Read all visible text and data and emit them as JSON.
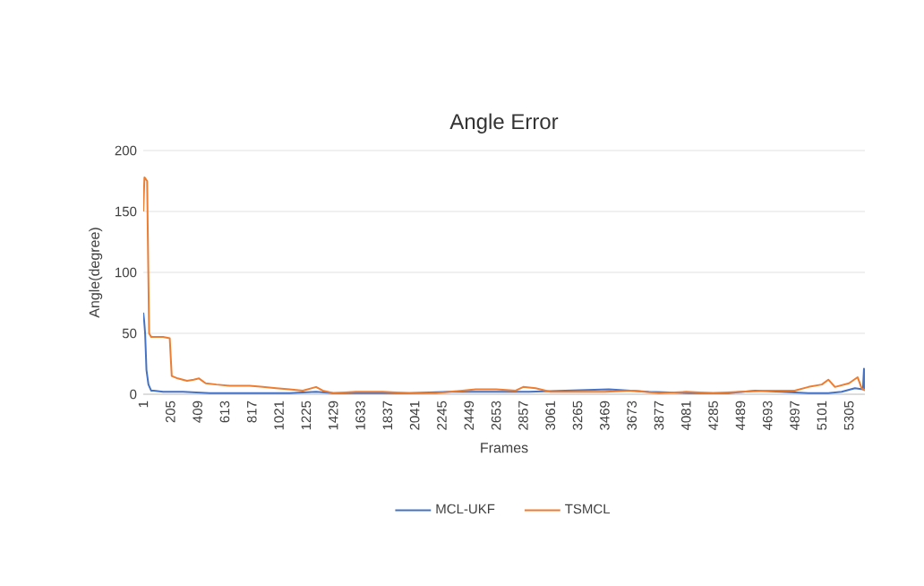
{
  "chart_data": {
    "type": "line",
    "title": "Angle Error",
    "xlabel": "Frames",
    "ylabel": "Angle(degree)",
    "xlim": [
      1,
      5425
    ],
    "ylim": [
      0,
      200
    ],
    "yticks": [
      0,
      50,
      100,
      150,
      200
    ],
    "xticks": [
      1,
      205,
      409,
      613,
      817,
      1021,
      1225,
      1429,
      1633,
      1837,
      2041,
      2245,
      2449,
      2653,
      2857,
      3061,
      3265,
      3469,
      3673,
      3877,
      4081,
      4285,
      4489,
      4693,
      4897,
      5101,
      5305
    ],
    "grid": "y",
    "legend": "bottom",
    "marker": "none",
    "line_style": "solid",
    "series": [
      {
        "name": "MCL-UKF",
        "color": "#4472c4",
        "x": [
          1,
          8,
          15,
          25,
          40,
          60,
          80,
          150,
          300,
          500,
          800,
          1100,
          1300,
          1429,
          1700,
          2000,
          2300,
          2600,
          2900,
          3200,
          3500,
          3800,
          4100,
          4400,
          4600,
          4800,
          5000,
          5150,
          5250,
          5350,
          5410,
          5418,
          5425
        ],
        "values": [
          67,
          60,
          50,
          20,
          8,
          3,
          3,
          2,
          2,
          1,
          1,
          1,
          2,
          1,
          1,
          1,
          2,
          2,
          2,
          3,
          4,
          2,
          1,
          1,
          3,
          2,
          1,
          1,
          2,
          5,
          4,
          21,
          4
        ]
      },
      {
        "name": "TSMCL",
        "color": "#ed7d31",
        "x": [
          1,
          10,
          30,
          45,
          60,
          150,
          200,
          215,
          260,
          330,
          380,
          420,
          470,
          550,
          650,
          800,
          900,
          1000,
          1100,
          1200,
          1300,
          1350,
          1429,
          1600,
          1800,
          2000,
          2200,
          2400,
          2500,
          2653,
          2800,
          2857,
          2950,
          3061,
          3265,
          3469,
          3673,
          3877,
          4081,
          4285,
          4489,
          4693,
          4897,
          5000,
          5101,
          5150,
          5200,
          5305,
          5370,
          5400,
          5425
        ],
        "values": [
          150,
          178,
          175,
          50,
          47,
          47,
          46,
          15,
          13,
          11,
          12,
          13,
          9,
          8,
          7,
          7,
          6,
          5,
          4,
          3,
          6,
          3,
          1,
          2,
          2,
          1,
          1,
          3,
          4,
          4,
          3,
          6,
          5,
          2,
          2,
          2,
          3,
          1,
          2,
          1,
          2,
          3,
          3,
          6,
          8,
          12,
          6,
          9,
          14,
          5,
          3
        ]
      }
    ]
  }
}
